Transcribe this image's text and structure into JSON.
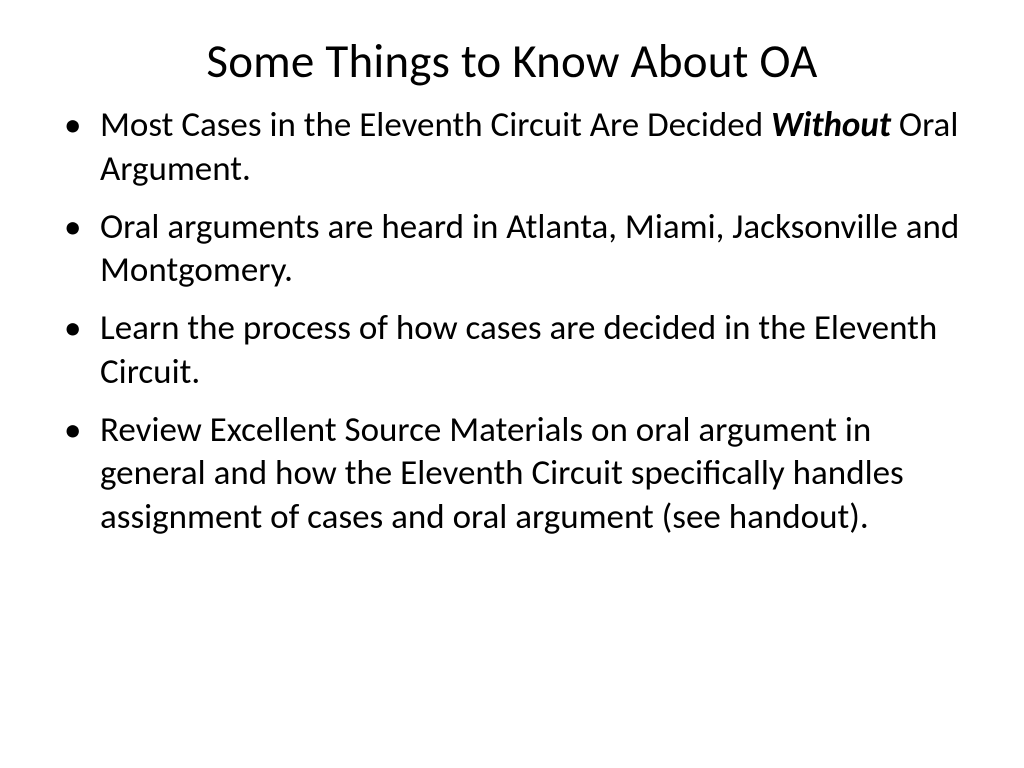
{
  "slide": {
    "title": "Some Things to Know About OA",
    "title_fontsize": 47,
    "title_color": "#000000",
    "background_color": "#ffffff",
    "bullets": [
      {
        "segments": [
          {
            "text": "Most Cases in the Eleventh Circuit Are Decided ",
            "style": "normal"
          },
          {
            "text": "Without",
            "style": "bold-italic"
          },
          {
            "text": " Oral Argument.",
            "style": "normal"
          }
        ]
      },
      {
        "segments": [
          {
            "text": "Oral arguments are heard in Atlanta, Miami, Jacksonville and Montgomery.",
            "style": "normal"
          }
        ]
      },
      {
        "segments": [
          {
            "text": "Learn the process of how cases are decided in the Eleventh Circuit.",
            "style": "normal"
          }
        ]
      },
      {
        "segments": [
          {
            "text": "Review Excellent Source Materials on oral argument in general and how the Eleventh Circuit specifically handles assignment of cases and oral argument (see handout).",
            "style": "normal"
          }
        ]
      }
    ],
    "bullet_fontsize": 35,
    "bullet_color": "#000000",
    "bullet_marker": "•"
  }
}
